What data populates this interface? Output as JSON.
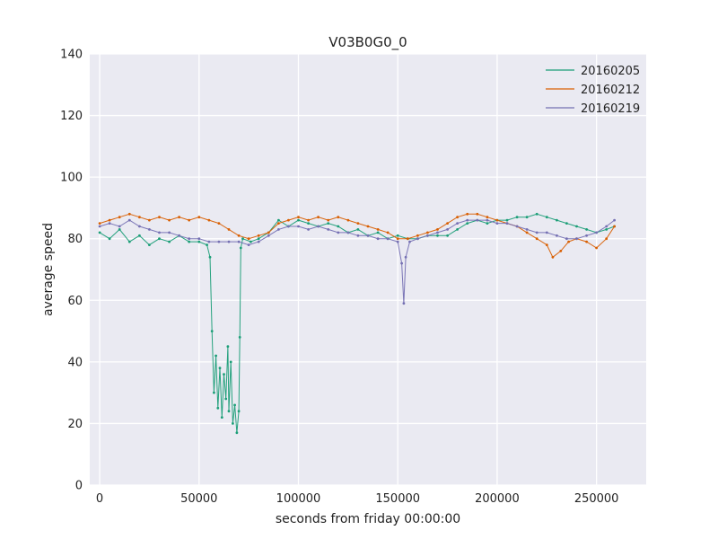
{
  "chart_data": {
    "type": "line",
    "title": "V03B0G0_0",
    "xlabel": "seconds from friday 00:00:00",
    "ylabel": "average speed",
    "xlim": [
      -5000,
      275000
    ],
    "ylim": [
      0,
      140
    ],
    "xticks": [
      0,
      50000,
      100000,
      150000,
      200000,
      250000
    ],
    "yticks": [
      0,
      20,
      40,
      60,
      80,
      100,
      120,
      140
    ],
    "grid": true,
    "legend_position": "top-right",
    "series": [
      {
        "name": "20160205",
        "color": "#1b9e77",
        "points": [
          [
            0,
            82
          ],
          [
            5000,
            80
          ],
          [
            10000,
            83
          ],
          [
            15000,
            79
          ],
          [
            20000,
            81
          ],
          [
            25000,
            78
          ],
          [
            30000,
            80
          ],
          [
            35000,
            79
          ],
          [
            40000,
            81
          ],
          [
            45000,
            79
          ],
          [
            50000,
            79
          ],
          [
            54000,
            78
          ],
          [
            55500,
            74
          ],
          [
            56500,
            50
          ],
          [
            57500,
            30
          ],
          [
            58500,
            42
          ],
          [
            59500,
            25
          ],
          [
            60500,
            38
          ],
          [
            61500,
            22
          ],
          [
            62500,
            36
          ],
          [
            63500,
            28
          ],
          [
            64500,
            45
          ],
          [
            65000,
            24
          ],
          [
            66000,
            40
          ],
          [
            67000,
            20
          ],
          [
            68000,
            26
          ],
          [
            69000,
            17
          ],
          [
            70000,
            24
          ],
          [
            70500,
            48
          ],
          [
            71000,
            77
          ],
          [
            72000,
            80
          ],
          [
            76000,
            79
          ],
          [
            80000,
            80
          ],
          [
            85000,
            82
          ],
          [
            90000,
            86
          ],
          [
            95000,
            84
          ],
          [
            100000,
            86
          ],
          [
            105000,
            85
          ],
          [
            110000,
            84
          ],
          [
            115000,
            85
          ],
          [
            120000,
            84
          ],
          [
            125000,
            82
          ],
          [
            130000,
            83
          ],
          [
            135000,
            81
          ],
          [
            140000,
            82
          ],
          [
            145000,
            80
          ],
          [
            150000,
            81
          ],
          [
            155000,
            80
          ],
          [
            160000,
            80
          ],
          [
            165000,
            81
          ],
          [
            170000,
            81
          ],
          [
            175000,
            81
          ],
          [
            180000,
            83
          ],
          [
            185000,
            85
          ],
          [
            190000,
            86
          ],
          [
            195000,
            85
          ],
          [
            200000,
            86
          ],
          [
            205000,
            86
          ],
          [
            210000,
            87
          ],
          [
            215000,
            87
          ],
          [
            220000,
            88
          ],
          [
            225000,
            87
          ],
          [
            230000,
            86
          ],
          [
            235000,
            85
          ],
          [
            240000,
            84
          ],
          [
            245000,
            83
          ],
          [
            250000,
            82
          ],
          [
            255000,
            83
          ],
          [
            259000,
            84
          ]
        ]
      },
      {
        "name": "20160212",
        "color": "#d95f02",
        "points": [
          [
            0,
            85
          ],
          [
            5000,
            86
          ],
          [
            10000,
            87
          ],
          [
            15000,
            88
          ],
          [
            20000,
            87
          ],
          [
            25000,
            86
          ],
          [
            30000,
            87
          ],
          [
            35000,
            86
          ],
          [
            40000,
            87
          ],
          [
            45000,
            86
          ],
          [
            50000,
            87
          ],
          [
            55000,
            86
          ],
          [
            60000,
            85
          ],
          [
            65000,
            83
          ],
          [
            70000,
            81
          ],
          [
            75000,
            80
          ],
          [
            80000,
            81
          ],
          [
            85000,
            82
          ],
          [
            90000,
            85
          ],
          [
            95000,
            86
          ],
          [
            100000,
            87
          ],
          [
            105000,
            86
          ],
          [
            110000,
            87
          ],
          [
            115000,
            86
          ],
          [
            120000,
            87
          ],
          [
            125000,
            86
          ],
          [
            130000,
            85
          ],
          [
            135000,
            84
          ],
          [
            140000,
            83
          ],
          [
            145000,
            82
          ],
          [
            150000,
            80
          ],
          [
            155000,
            80
          ],
          [
            160000,
            81
          ],
          [
            165000,
            82
          ],
          [
            170000,
            83
          ],
          [
            175000,
            85
          ],
          [
            180000,
            87
          ],
          [
            185000,
            88
          ],
          [
            190000,
            88
          ],
          [
            195000,
            87
          ],
          [
            200000,
            86
          ],
          [
            205000,
            85
          ],
          [
            210000,
            84
          ],
          [
            215000,
            82
          ],
          [
            220000,
            80
          ],
          [
            225000,
            78
          ],
          [
            228000,
            74
          ],
          [
            232000,
            76
          ],
          [
            236000,
            79
          ],
          [
            240000,
            80
          ],
          [
            245000,
            79
          ],
          [
            250000,
            77
          ],
          [
            255000,
            80
          ],
          [
            259000,
            84
          ]
        ]
      },
      {
        "name": "20160219",
        "color": "#7570b3",
        "points": [
          [
            0,
            84
          ],
          [
            5000,
            85
          ],
          [
            10000,
            84
          ],
          [
            15000,
            86
          ],
          [
            20000,
            84
          ],
          [
            25000,
            83
          ],
          [
            30000,
            82
          ],
          [
            35000,
            82
          ],
          [
            40000,
            81
          ],
          [
            45000,
            80
          ],
          [
            50000,
            80
          ],
          [
            55000,
            79
          ],
          [
            60000,
            79
          ],
          [
            65000,
            79
          ],
          [
            70000,
            79
          ],
          [
            75000,
            78
          ],
          [
            80000,
            79
          ],
          [
            85000,
            81
          ],
          [
            90000,
            83
          ],
          [
            95000,
            84
          ],
          [
            100000,
            84
          ],
          [
            105000,
            83
          ],
          [
            110000,
            84
          ],
          [
            115000,
            83
          ],
          [
            120000,
            82
          ],
          [
            125000,
            82
          ],
          [
            130000,
            81
          ],
          [
            135000,
            81
          ],
          [
            140000,
            80
          ],
          [
            145000,
            80
          ],
          [
            150000,
            79
          ],
          [
            152000,
            72
          ],
          [
            153000,
            59
          ],
          [
            154000,
            74
          ],
          [
            156000,
            79
          ],
          [
            160000,
            80
          ],
          [
            165000,
            81
          ],
          [
            170000,
            82
          ],
          [
            175000,
            83
          ],
          [
            180000,
            85
          ],
          [
            185000,
            86
          ],
          [
            190000,
            86
          ],
          [
            195000,
            86
          ],
          [
            200000,
            85
          ],
          [
            205000,
            85
          ],
          [
            210000,
            84
          ],
          [
            215000,
            83
          ],
          [
            220000,
            82
          ],
          [
            225000,
            82
          ],
          [
            230000,
            81
          ],
          [
            235000,
            80
          ],
          [
            240000,
            80
          ],
          [
            245000,
            81
          ],
          [
            250000,
            82
          ],
          [
            255000,
            84
          ],
          [
            259000,
            86
          ]
        ]
      }
    ]
  }
}
